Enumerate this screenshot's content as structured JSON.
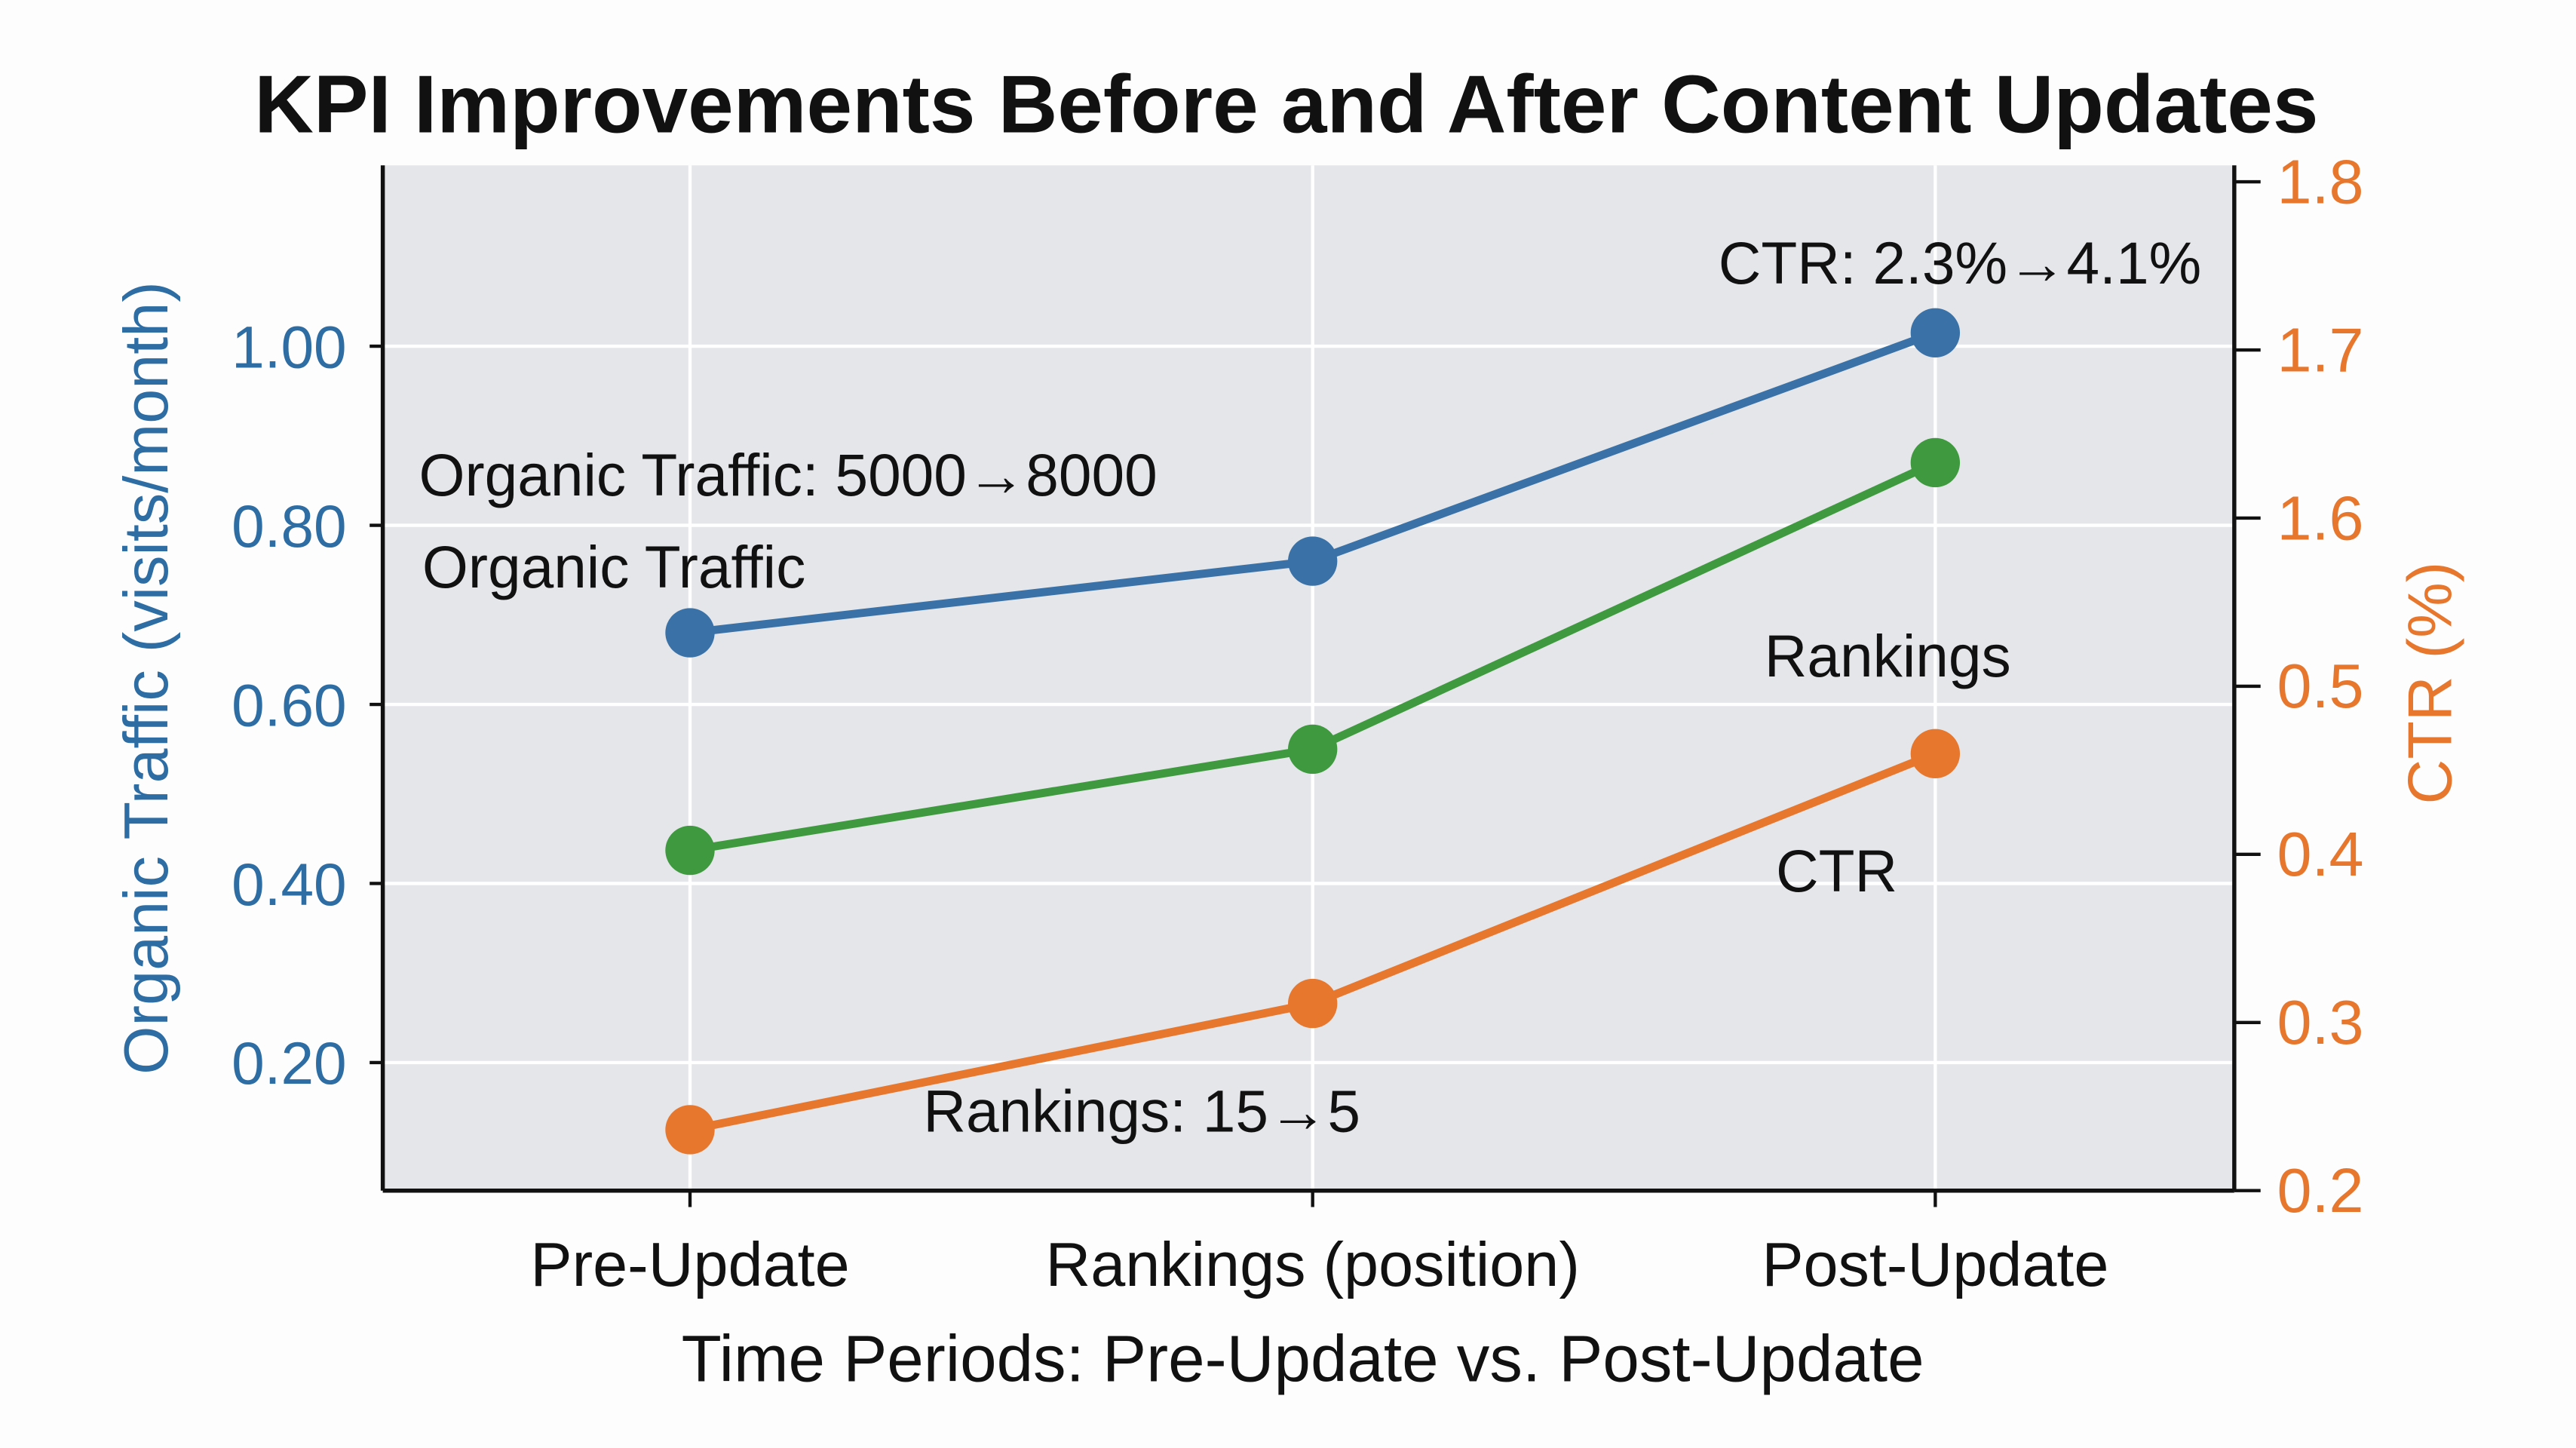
{
  "chart_data": {
    "type": "line",
    "title": "KPI Improvements Before and After Content Updates",
    "xlabel": "Time Periods: Pre-Update vs. Post-Update",
    "ylabel": "Organic Traffic (visits/month)",
    "ylabel_right": "CTR (%)",
    "categories": [
      "Pre-Update",
      "Rankings (position)",
      "Post-Update"
    ],
    "ylim": [
      0.057,
      1.202
    ],
    "yticks": [
      {
        "value": 0.2,
        "label": "0.20"
      },
      {
        "value": 0.4,
        "label": "0.40"
      },
      {
        "value": 0.6,
        "label": "0.60"
      },
      {
        "value": 0.8,
        "label": "0.80"
      },
      {
        "value": 1.0,
        "label": "1.00"
      }
    ],
    "yticks_right": [
      "0.2",
      "0.3",
      "0.4",
      "0.5",
      "1.6",
      "1.7",
      "1.8"
    ],
    "grid": true,
    "series": [
      {
        "color": "#3a72a8",
        "values": [
          0.68,
          0.76,
          1.015
        ]
      },
      {
        "color": "#3f9a3f",
        "values": [
          0.437,
          0.55,
          0.87
        ]
      },
      {
        "color": "#e8772e",
        "values": [
          0.125,
          0.266,
          0.545
        ]
      }
    ],
    "annotations": [
      "Organic Traffic: 5000→8000",
      "Organic Traffic",
      "CTR: 2.3%→4.1%",
      "Rankings",
      "CTR",
      "Rankings: 15→5"
    ],
    "colors": {
      "left_axis": "#2e6da4",
      "right_axis": "#e8772e",
      "plot_bg": "#e5e6ea",
      "grid": "#ffffff"
    }
  }
}
